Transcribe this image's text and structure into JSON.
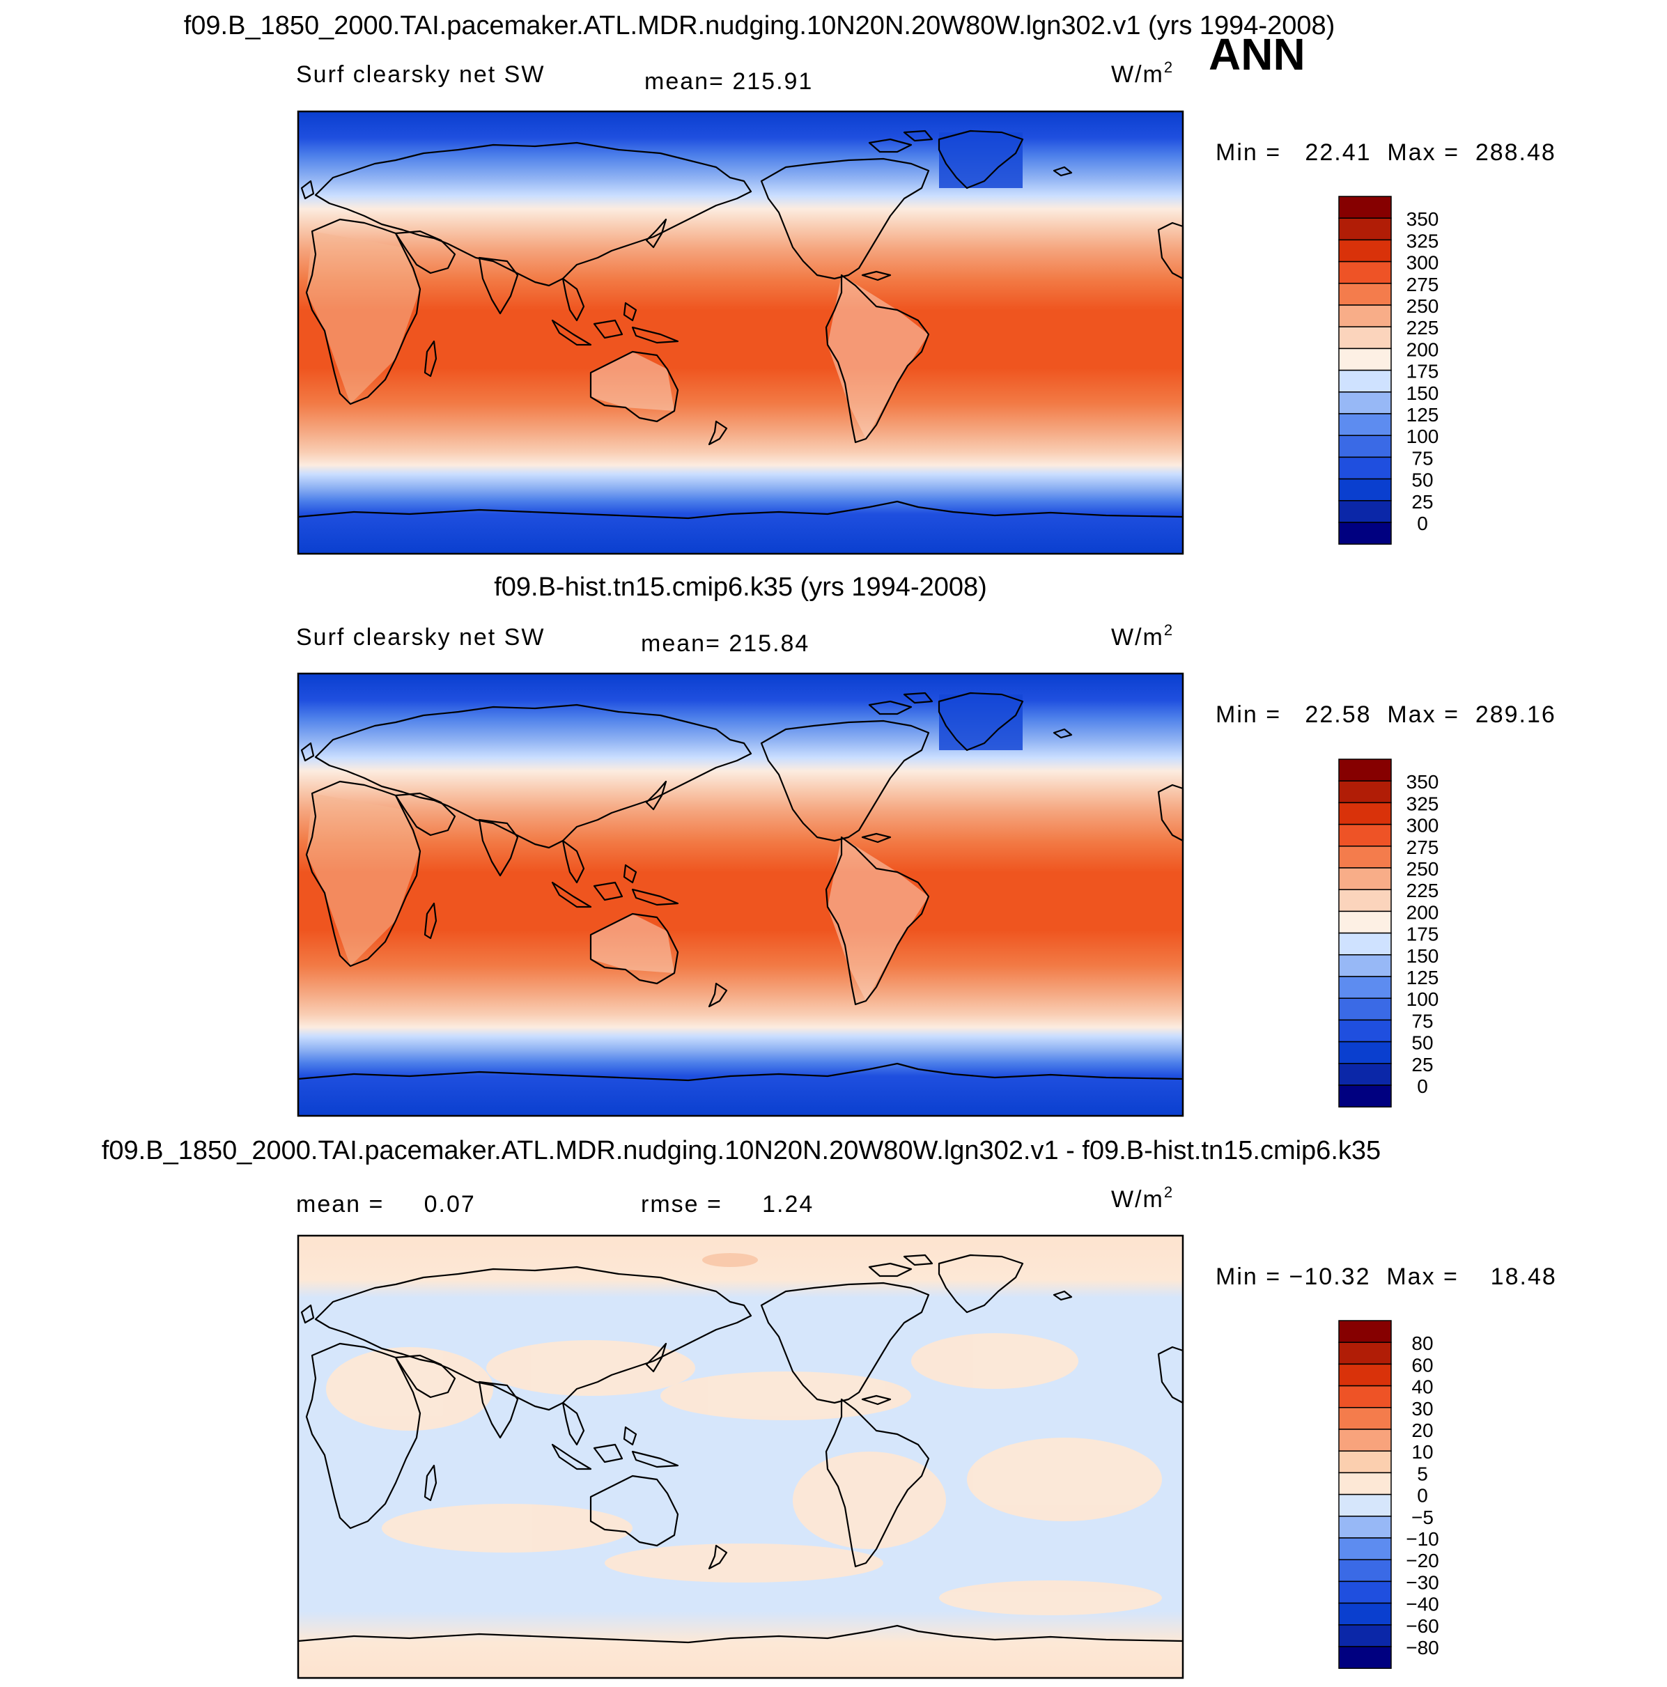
{
  "season": "ANN",
  "units": "W/m",
  "units_sup": "2",
  "colors": {
    "ocean_pos": [
      "#0a3fcf",
      "#1f4fdf",
      "#4d80ea",
      "#8fb2f3",
      "#cadeff",
      "#f9ddc6",
      "#f7c1a1",
      "#f39a70",
      "#f26a3c",
      "#ef4e1e"
    ],
    "abs_scale": [
      "#000080",
      "#0b27a8",
      "#0a3fcf",
      "#1f4fdf",
      "#3a6ae6",
      "#5d8cf0",
      "#97b8f6",
      "#cfe2ff",
      "#fdf0e4",
      "#fbd4bc",
      "#f8ad88",
      "#f47c4c",
      "#ee5326",
      "#d9320a",
      "#b11d06",
      "#860000"
    ],
    "diff_scale": [
      "#000080",
      "#0b27a8",
      "#0a3fcf",
      "#1f4fdf",
      "#3a6ae6",
      "#5d8cf0",
      "#97b8f6",
      "#d6e6fb",
      "#fde8d6",
      "#fbcfaf",
      "#f8a37c",
      "#f47c4c",
      "#ee5326",
      "#d9320a",
      "#b11d06",
      "#860000"
    ]
  },
  "panels": [
    {
      "title": "f09.B_1850_2000.TAI.pacemaker.ATL.MDR.nudging.10N20N.20W80W.lgn302.v1 (yrs 1994-2008)",
      "variable": "Surf clearsky net SW",
      "mean_text": "mean= 215.91",
      "min_max": "Min =   22.41  Max =  288.48",
      "colorbar_labels": [
        "350",
        "325",
        "300",
        "275",
        "250",
        "225",
        "200",
        "175",
        "150",
        "125",
        "100",
        "75",
        "50",
        "25",
        "0"
      ]
    },
    {
      "title": "f09.B-hist.tn15.cmip6.k35 (yrs 1994-2008)",
      "variable": "Surf clearsky net SW",
      "mean_text": "mean= 215.84",
      "min_max": "Min =   22.58  Max =  289.16",
      "colorbar_labels": [
        "350",
        "325",
        "300",
        "275",
        "250",
        "225",
        "200",
        "175",
        "150",
        "125",
        "100",
        "75",
        "50",
        "25",
        "0"
      ]
    },
    {
      "title": "f09.B_1850_2000.TAI.pacemaker.ATL.MDR.nudging.10N20N.20W80W.lgn302.v1 - f09.B-hist.tn15.cmip6.k35",
      "mean_text": "mean =     0.07",
      "rmse_text": "rmse =     1.24",
      "min_max": "Min = −10.32  Max =    18.48",
      "colorbar_labels": [
        "80",
        "60",
        "40",
        "30",
        "20",
        "10",
        "5",
        "0",
        "−5",
        "−10",
        "−20",
        "−30",
        "−40",
        "−60",
        "−80"
      ]
    }
  ],
  "chart_data": [
    {
      "type": "heatmap",
      "title": "f09.B_1850_2000.TAI.pacemaker.ATL.MDR.nudging.10N20N.20W80W.lgn302.v1 (yrs 1994-2008)",
      "variable": "Surf clearsky net SW",
      "units": "W/m2",
      "mean": 215.91,
      "min": 22.41,
      "max": 288.48,
      "levels": [
        0,
        25,
        50,
        75,
        100,
        125,
        150,
        175,
        200,
        225,
        250,
        275,
        300,
        325,
        350
      ],
      "lat_range": [
        -90,
        90
      ],
      "lon_range": [
        0,
        360
      ]
    },
    {
      "type": "heatmap",
      "title": "f09.B-hist.tn15.cmip6.k35 (yrs 1994-2008)",
      "variable": "Surf clearsky net SW",
      "units": "W/m2",
      "mean": 215.84,
      "min": 22.58,
      "max": 289.16,
      "levels": [
        0,
        25,
        50,
        75,
        100,
        125,
        150,
        175,
        200,
        225,
        250,
        275,
        300,
        325,
        350
      ],
      "lat_range": [
        -90,
        90
      ],
      "lon_range": [
        0,
        360
      ]
    },
    {
      "type": "heatmap",
      "title": "f09.B_1850_2000.TAI.pacemaker.ATL.MDR.nudging.10N20N.20W80W.lgn302.v1 - f09.B-hist.tn15.cmip6.k35",
      "units": "W/m2",
      "mean": 0.07,
      "rmse": 1.24,
      "min": -10.32,
      "max": 18.48,
      "levels": [
        -80,
        -60,
        -40,
        -30,
        -20,
        -10,
        -5,
        0,
        5,
        10,
        20,
        30,
        40,
        60,
        80
      ],
      "lat_range": [
        -90,
        90
      ],
      "lon_range": [
        0,
        360
      ]
    }
  ]
}
